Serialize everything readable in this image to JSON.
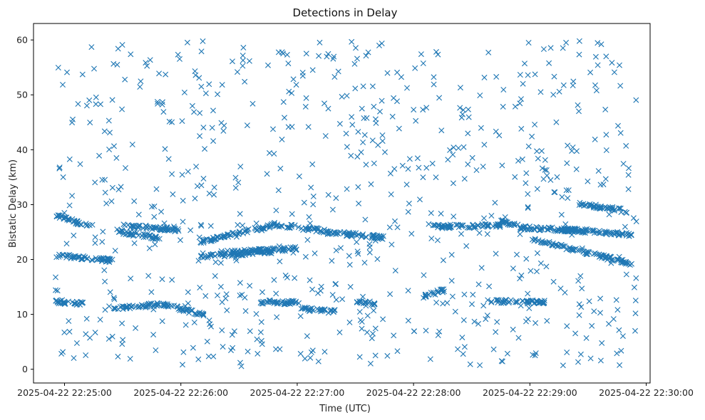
{
  "chart_data": {
    "type": "scatter",
    "title": "Detections in Delay",
    "xlabel": "Time (UTC)",
    "ylabel": "Bistatic Delay (km)",
    "marker": "x",
    "color": "#1f77b4",
    "grid": false,
    "xlim": [
      "2025-04-22 22:24:44",
      "2025-04-22 22:30:02"
    ],
    "ylim": [
      -2.5,
      63
    ],
    "x_ticks": [
      "2025-04-22 22:25:00",
      "2025-04-22 22:26:00",
      "2025-04-22 22:27:00",
      "2025-04-22 22:28:00",
      "2025-04-22 22:29:00",
      "2025-04-22 22:30:00"
    ],
    "y_ticks": [
      0,
      10,
      20,
      30,
      40,
      50,
      60
    ],
    "time_range": [
      "2025-04-22 22:24:55",
      "2025-04-22 22:29:55"
    ],
    "tracks": [
      {
        "from": [
          "2025-04-22 22:24:55",
          28.2
        ],
        "to": [
          "2025-04-22 22:25:13",
          26.0
        ]
      },
      {
        "from": [
          "2025-04-22 22:25:27",
          25.2
        ],
        "to": [
          "2025-04-22 22:25:49",
          23.8
        ]
      },
      {
        "from": [
          "2025-04-22 22:25:30",
          26.2
        ],
        "to": [
          "2025-04-22 22:25:59",
          25.4
        ]
      },
      {
        "from": [
          "2025-04-22 22:24:55",
          20.8
        ],
        "to": [
          "2025-04-22 22:25:25",
          19.8
        ]
      },
      {
        "from": [
          "2025-04-22 22:24:55",
          12.3
        ],
        "to": [
          "2025-04-22 22:25:10",
          11.9
        ]
      },
      {
        "from": [
          "2025-04-22 22:25:25",
          11.1
        ],
        "to": [
          "2025-04-22 22:25:49",
          11.8
        ]
      },
      {
        "from": [
          "2025-04-22 22:25:50",
          12.0
        ],
        "to": [
          "2025-04-22 22:26:12",
          9.8
        ]
      },
      {
        "from": [
          "2025-04-22 22:26:10",
          20.5
        ],
        "to": [
          "2025-04-22 22:26:48",
          21.5
        ]
      },
      {
        "from": [
          "2025-04-22 22:26:10",
          23.2
        ],
        "to": [
          "2025-04-22 22:26:48",
          26.3
        ]
      },
      {
        "from": [
          "2025-04-22 22:26:48",
          26.4
        ],
        "to": [
          "2025-04-22 22:27:14",
          25.2
        ]
      },
      {
        "from": [
          "2025-04-22 22:27:14",
          25.0
        ],
        "to": [
          "2025-04-22 22:27:45",
          24.0
        ]
      },
      {
        "from": [
          "2025-04-22 22:26:40",
          12.3
        ],
        "to": [
          "2025-04-22 22:27:02",
          12.1
        ]
      },
      {
        "from": [
          "2025-04-22 22:27:02",
          11.0
        ],
        "to": [
          "2025-04-22 22:27:20",
          10.5
        ]
      },
      {
        "from": [
          "2025-04-22 22:27:30",
          12.2
        ],
        "to": [
          "2025-04-22 22:27:40",
          12.0
        ]
      },
      {
        "from": [
          "2025-04-22 22:28:05",
          13.2
        ],
        "to": [
          "2025-04-22 22:28:17",
          14.6
        ]
      },
      {
        "from": [
          "2025-04-22 22:28:10",
          26.0
        ],
        "to": [
          "2025-04-22 22:28:45",
          26.2
        ]
      },
      {
        "from": [
          "2025-04-22 22:28:45",
          27.0
        ],
        "to": [
          "2025-04-22 22:28:55",
          26.0
        ]
      },
      {
        "from": [
          "2025-04-22 22:28:55",
          25.8
        ],
        "to": [
          "2025-04-22 22:29:30",
          25.2
        ]
      },
      {
        "from": [
          "2025-04-22 22:29:00",
          23.8
        ],
        "to": [
          "2025-04-22 22:29:53",
          19.2
        ]
      },
      {
        "from": [
          "2025-04-22 22:29:15",
          25.5
        ],
        "to": [
          "2025-04-22 22:29:53",
          24.5
        ]
      },
      {
        "from": [
          "2025-04-22 22:29:25",
          30.2
        ],
        "to": [
          "2025-04-22 22:29:50",
          28.8
        ]
      },
      {
        "from": [
          "2025-04-22 22:28:40",
          12.4
        ],
        "to": [
          "2025-04-22 22:29:08",
          12.2
        ]
      },
      {
        "from": [
          "2025-04-22 22:26:20",
          21.2
        ],
        "to": [
          "2025-04-22 22:27:00",
          22.0
        ]
      }
    ],
    "point_counts": {
      "tracks": 1190,
      "clutter": 720
    }
  }
}
